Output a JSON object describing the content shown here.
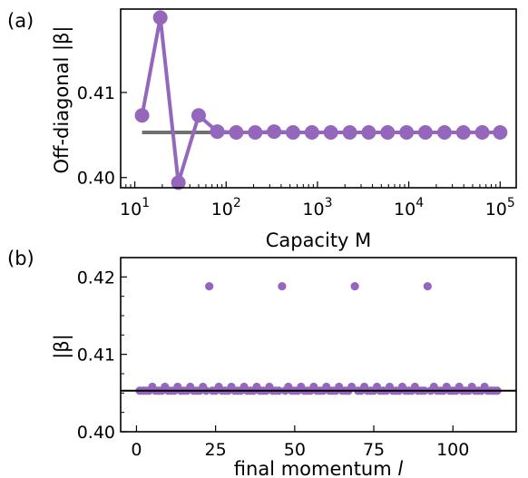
{
  "colors": {
    "series": "#9467bd",
    "reference_a": "#707070",
    "reference_b": "#000000",
    "axes": "#000000"
  },
  "chart_data": [
    {
      "type": "line",
      "panel_label": "(a)",
      "xlabel": "Capacity M",
      "ylabel": "Off-diagonal |β|",
      "xscale": "log",
      "xlim": [
        7,
        150000
      ],
      "ylim": [
        0.3988,
        0.4198
      ],
      "xticks": [
        {
          "value": 10,
          "base": "10",
          "exp": "1"
        },
        {
          "value": 100,
          "base": "10",
          "exp": "2"
        },
        {
          "value": 1000,
          "base": "10",
          "exp": "3"
        },
        {
          "value": 10000,
          "base": "10",
          "exp": "4"
        },
        {
          "value": 100000,
          "base": "10",
          "exp": "5"
        }
      ],
      "yticks": [
        {
          "value": 0.4,
          "label": "0.40"
        },
        {
          "value": 0.41,
          "label": "0.41"
        }
      ],
      "reference_line": {
        "y": 0.4053,
        "x_from": 12,
        "x_to": 100000
      },
      "series": [
        {
          "x": [
            12,
            19,
            30,
            50,
            80,
            129,
            208,
            335,
            540,
            870,
            1400,
            2260,
            3640,
            5870,
            9460,
            15200,
            24600,
            39600,
            63800,
            100000
          ],
          "y": [
            0.4073,
            0.4188,
            0.3994,
            0.4073,
            0.4054,
            0.4053,
            0.4053,
            0.4054,
            0.4053,
            0.4053,
            0.4053,
            0.4053,
            0.4053,
            0.4053,
            0.4053,
            0.4053,
            0.4053,
            0.4053,
            0.4053,
            0.4053
          ]
        }
      ]
    },
    {
      "type": "scatter",
      "panel_label": "(b)",
      "xlabel": "final momentum l",
      "ylabel": "|β|",
      "xlim": [
        -5,
        120
      ],
      "ylim": [
        0.4,
        0.4225
      ],
      "xticks": [
        {
          "value": 0,
          "label": "0"
        },
        {
          "value": 25,
          "label": "25"
        },
        {
          "value": 50,
          "label": "50"
        },
        {
          "value": 75,
          "label": "75"
        },
        {
          "value": 100,
          "label": "100"
        }
      ],
      "yticks": [
        {
          "value": 0.4,
          "label": "0.40"
        },
        {
          "value": 0.41,
          "label": "0.41"
        },
        {
          "value": 0.42,
          "label": "0.42"
        }
      ],
      "reference_line": {
        "y": 0.4053
      },
      "series": [
        {
          "x": [
            1,
            2,
            3,
            4,
            5,
            6,
            7,
            8,
            9,
            10,
            11,
            12,
            13,
            14,
            15,
            16,
            17,
            18,
            19,
            20,
            21,
            22,
            23,
            24,
            25,
            26,
            27,
            28,
            29,
            30,
            31,
            32,
            33,
            34,
            35,
            36,
            37,
            38,
            39,
            40,
            41,
            42,
            43,
            44,
            45,
            46,
            47,
            48,
            49,
            50,
            51,
            52,
            53,
            54,
            55,
            56,
            57,
            58,
            59,
            60,
            61,
            62,
            63,
            64,
            65,
            66,
            67,
            68,
            69,
            70,
            71,
            72,
            73,
            74,
            75,
            76,
            77,
            78,
            79,
            80,
            81,
            82,
            83,
            84,
            85,
            86,
            87,
            88,
            89,
            90,
            91,
            92,
            93,
            94,
            95,
            96,
            97,
            98,
            99,
            100,
            101,
            102,
            103,
            104,
            105,
            106,
            107,
            108,
            109,
            110,
            111,
            112,
            113,
            114
          ],
          "y": [
            0.4053,
            0.4053,
            0.4053,
            0.4053,
            0.4058,
            0.4053,
            0.4053,
            0.4053,
            0.4058,
            0.4053,
            0.4053,
            0.4053,
            0.4058,
            0.4053,
            0.4053,
            0.4053,
            0.4058,
            0.4053,
            0.4053,
            0.4053,
            0.4058,
            0.4053,
            0.4188,
            0.4053,
            0.4053,
            0.4058,
            0.4053,
            0.4053,
            0.4053,
            0.4058,
            0.4053,
            0.4053,
            0.4053,
            0.4058,
            0.4053,
            0.4053,
            0.4053,
            0.4058,
            0.4053,
            0.4053,
            0.4053,
            0.4058,
            0.4053,
            0.4053,
            0.4053,
            0.4188,
            0.4053,
            0.4058,
            0.4053,
            0.4053,
            0.4053,
            0.4058,
            0.4053,
            0.4053,
            0.4053,
            0.4058,
            0.4053,
            0.4053,
            0.4053,
            0.4058,
            0.4053,
            0.4053,
            0.4053,
            0.4058,
            0.4053,
            0.4053,
            0.4053,
            0.4058,
            0.4188,
            0.4053,
            0.4053,
            0.4058,
            0.4053,
            0.4053,
            0.4053,
            0.4058,
            0.4053,
            0.4053,
            0.4053,
            0.4058,
            0.4053,
            0.4053,
            0.4053,
            0.4058,
            0.4053,
            0.4053,
            0.4053,
            0.4058,
            0.4053,
            0.4053,
            0.4053,
            0.4188,
            0.4053,
            0.4058,
            0.4053,
            0.4053,
            0.4053,
            0.4058,
            0.4053,
            0.4053,
            0.4053,
            0.4058,
            0.4053,
            0.4053,
            0.4053,
            0.4058,
            0.4053,
            0.4053,
            0.4053,
            0.4058,
            0.4053,
            0.4053,
            0.4053,
            0.4053
          ]
        }
      ]
    }
  ]
}
